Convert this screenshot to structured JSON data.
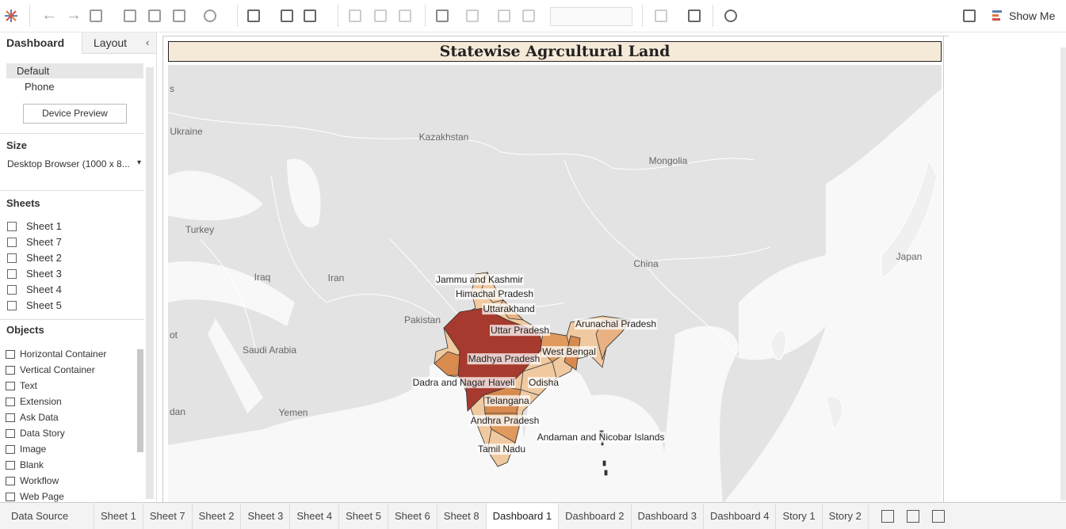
{
  "toolbar": {
    "show_me": "Show Me"
  },
  "side_panel": {
    "tabs": [
      "Dashboard",
      "Layout"
    ],
    "devices": [
      "Default",
      "Phone"
    ],
    "device_preview": "Device Preview",
    "size_heading": "Size",
    "size_value": "Desktop Browser (1000 x 8...",
    "sheets_heading": "Sheets",
    "sheets": [
      "Sheet 1",
      "Sheet 7",
      "Sheet 2",
      "Sheet 3",
      "Sheet 4",
      "Sheet 5"
    ],
    "objects_heading": "Objects",
    "objects": [
      "Horizontal Container",
      "Vertical Container",
      "Text",
      "Extension",
      "Ask Data",
      "Data Story",
      "Image",
      "Blank",
      "Workflow",
      "Web Page"
    ]
  },
  "dashboard": {
    "title": "Statewise Agrcultural Land",
    "country_labels": [
      "Ukraine",
      "Kazakhstan",
      "Mongolia",
      "Turkey",
      "China",
      "Japan",
      "Iraq",
      "Iran",
      "Pakistan",
      "Saudi Arabia",
      "Yemen",
      "s",
      "ot",
      "dan"
    ],
    "state_labels": [
      "Jammu and Kashmir",
      "Himachal Pradesh",
      "Uttarakhand",
      "Uttar Pradesh",
      "Arunachal Pradesh",
      "West Bengal",
      "Madhya Pradesh",
      "Dadra and Nagar Haveli",
      "Odisha",
      "Telangana",
      "Andhra Pradesh",
      "Andaman and Nicobar Islands",
      "Tamil Nadu"
    ]
  },
  "bottom_tabs": [
    "Data Source",
    "Sheet 1",
    "Sheet 7",
    "Sheet 2",
    "Sheet 3",
    "Sheet 4",
    "Sheet 5",
    "Sheet 6",
    "Sheet 8",
    "Dashboard 1",
    "Dashboard 2",
    "Dashboard 3",
    "Dashboard 4",
    "Story 1",
    "Story 2"
  ]
}
